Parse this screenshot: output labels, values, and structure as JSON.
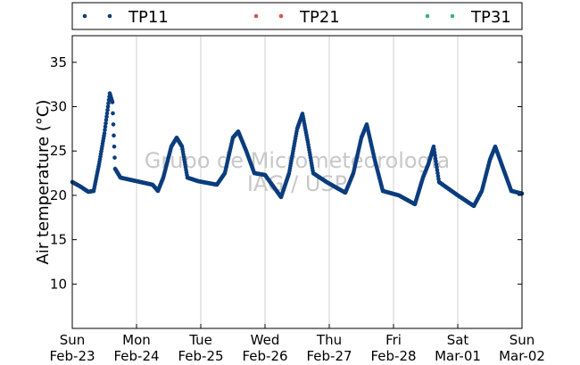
{
  "chart_data": {
    "type": "scatter",
    "ylabel": "Air temperature (°C)",
    "ylim": [
      5,
      38
    ],
    "yticks": [
      10,
      15,
      20,
      25,
      30,
      35
    ],
    "xlim": [
      "2014-02-23 00:00",
      "2014-03-02 00:00"
    ],
    "xticks": [
      {
        "day": "Sun",
        "date": "Feb-23"
      },
      {
        "day": "Mon",
        "date": "Feb-24"
      },
      {
        "day": "Tue",
        "date": "Feb-25"
      },
      {
        "day": "Wed",
        "date": "Feb-26"
      },
      {
        "day": "Thu",
        "date": "Feb-27"
      },
      {
        "day": "Fri",
        "date": "Feb-28"
      },
      {
        "day": "Sat",
        "date": "Mar-01"
      },
      {
        "day": "Sun",
        "date": "Mar-02"
      }
    ],
    "grid": "vertical-only",
    "legend_position": "top",
    "watermark": [
      "Grupo de Micrometeorologia",
      "IAG / USP"
    ],
    "series": [
      {
        "name": "TP11",
        "color": "#0b3d7d",
        "points": [
          [
            "2014-02-23 00:00",
            21.5
          ],
          [
            "2014-02-23 03:00",
            21.0
          ],
          [
            "2014-02-23 06:00",
            20.4
          ],
          [
            "2014-02-23 08:00",
            20.5
          ],
          [
            "2014-02-23 10:00",
            23.5
          ],
          [
            "2014-02-23 12:00",
            27.0
          ],
          [
            "2014-02-23 14:00",
            31.5
          ],
          [
            "2014-02-23 15:00",
            30.5
          ],
          [
            "2014-02-23 16:00",
            23.0
          ],
          [
            "2014-02-23 18:00",
            22.0
          ],
          [
            "2014-02-23 21:00",
            21.8
          ],
          [
            "2014-02-24 00:00",
            21.6
          ],
          [
            "2014-02-24 06:00",
            21.2
          ],
          [
            "2014-02-24 08:00",
            20.5
          ],
          [
            "2014-02-24 10:00",
            22.0
          ],
          [
            "2014-02-24 13:00",
            25.5
          ],
          [
            "2014-02-24 15:00",
            26.5
          ],
          [
            "2014-02-24 17:00",
            25.5
          ],
          [
            "2014-02-24 19:00",
            22.0
          ],
          [
            "2014-02-24 23:00",
            21.6
          ],
          [
            "2014-02-25 06:00",
            21.2
          ],
          [
            "2014-02-25 09:00",
            22.5
          ],
          [
            "2014-02-25 12:00",
            26.5
          ],
          [
            "2014-02-25 14:00",
            27.2
          ],
          [
            "2014-02-25 17:00",
            25.0
          ],
          [
            "2014-02-25 20:00",
            22.5
          ],
          [
            "2014-02-26 00:00",
            22.3
          ],
          [
            "2014-02-26 06:00",
            19.8
          ],
          [
            "2014-02-26 09:00",
            22.5
          ],
          [
            "2014-02-26 12:00",
            27.5
          ],
          [
            "2014-02-26 14:00",
            29.2
          ],
          [
            "2014-02-26 16:00",
            26.0
          ],
          [
            "2014-02-26 18:00",
            22.5
          ],
          [
            "2014-02-26 23:00",
            21.5
          ],
          [
            "2014-02-27 06:00",
            20.3
          ],
          [
            "2014-02-27 09:00",
            22.5
          ],
          [
            "2014-02-27 12:00",
            26.5
          ],
          [
            "2014-02-27 14:00",
            28.0
          ],
          [
            "2014-02-27 17:00",
            24.0
          ],
          [
            "2014-02-27 20:00",
            20.5
          ],
          [
            "2014-02-28 02:00",
            20.0
          ],
          [
            "2014-02-28 08:00",
            19.0
          ],
          [
            "2014-02-28 11:00",
            22.0
          ],
          [
            "2014-02-28 13:00",
            23.5
          ],
          [
            "2014-02-28 15:00",
            25.5
          ],
          [
            "2014-02-28 17:00",
            21.5
          ],
          [
            "2014-03-01 00:00",
            20.0
          ],
          [
            "2014-03-01 06:00",
            18.8
          ],
          [
            "2014-03-01 09:00",
            20.5
          ],
          [
            "2014-03-01 12:00",
            24.0
          ],
          [
            "2014-03-01 14:00",
            25.5
          ],
          [
            "2014-03-01 17:00",
            23.0
          ],
          [
            "2014-03-01 20:00",
            20.5
          ],
          [
            "2014-03-02 00:00",
            20.2
          ]
        ]
      },
      {
        "name": "TP21",
        "color": "#d9534f",
        "points": []
      },
      {
        "name": "TP31",
        "color": "#3cb371",
        "points": []
      }
    ]
  }
}
